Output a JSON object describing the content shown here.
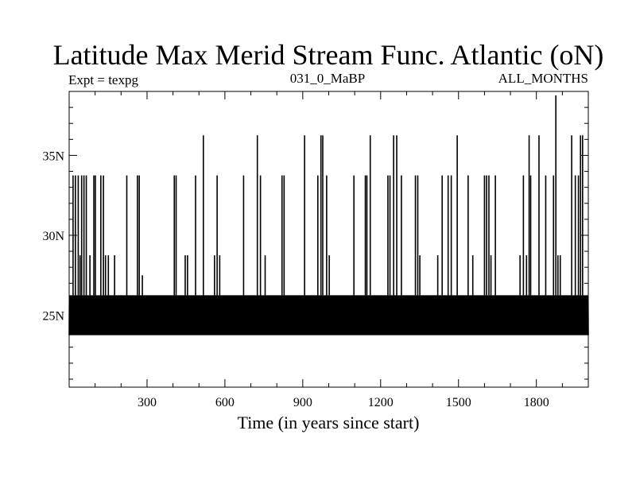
{
  "chart_data": {
    "type": "line",
    "title": "Latitude Max Merid Stream Func. Atlantic (oN)",
    "subtitle_left": "Expt = texpg",
    "subtitle_center": "031_0_MaBP",
    "subtitle_right": "ALL_MONTHS",
    "xlabel": "Time (in years since start)",
    "ylabel": "",
    "xlim": [
      0,
      2000
    ],
    "ylim": [
      20.5,
      39
    ],
    "x_ticks": [
      300,
      600,
      900,
      1200,
      1500,
      1800
    ],
    "x_tick_labels": [
      "300",
      "600",
      "900",
      "1200",
      "1500",
      "1800"
    ],
    "y_ticks": [
      25,
      30,
      35
    ],
    "y_tick_labels": [
      "25N",
      "30N",
      "35N"
    ],
    "grid": false,
    "series": [
      {
        "name": "Latitude of max meridional stream function",
        "color": "#000000",
        "baseline_low": 23.75,
        "baseline_high": 26.25,
        "spikes": [
          {
            "x": 15,
            "value": 33.75
          },
          {
            "x": 24,
            "value": 33.75
          },
          {
            "x": 35,
            "value": 33.75
          },
          {
            "x": 42,
            "value": 28.75
          },
          {
            "x": 48,
            "value": 33.75
          },
          {
            "x": 57,
            "value": 33.75
          },
          {
            "x": 66,
            "value": 33.75
          },
          {
            "x": 80,
            "value": 28.75
          },
          {
            "x": 95,
            "value": 33.75
          },
          {
            "x": 101,
            "value": 33.75
          },
          {
            "x": 122,
            "value": 33.75
          },
          {
            "x": 132,
            "value": 33.75
          },
          {
            "x": 140,
            "value": 28.75
          },
          {
            "x": 151,
            "value": 28.75
          },
          {
            "x": 175,
            "value": 28.75
          },
          {
            "x": 222,
            "value": 33.75
          },
          {
            "x": 263,
            "value": 33.75
          },
          {
            "x": 270,
            "value": 33.75
          },
          {
            "x": 282,
            "value": 27.5
          },
          {
            "x": 405,
            "value": 33.75
          },
          {
            "x": 412,
            "value": 33.75
          },
          {
            "x": 447,
            "value": 28.75
          },
          {
            "x": 456,
            "value": 28.75
          },
          {
            "x": 487,
            "value": 33.75
          },
          {
            "x": 517,
            "value": 36.25
          },
          {
            "x": 560,
            "value": 28.75
          },
          {
            "x": 570,
            "value": 33.75
          },
          {
            "x": 580,
            "value": 28.75
          },
          {
            "x": 672,
            "value": 33.75
          },
          {
            "x": 725,
            "value": 36.25
          },
          {
            "x": 737,
            "value": 33.75
          },
          {
            "x": 755,
            "value": 28.75
          },
          {
            "x": 820,
            "value": 33.75
          },
          {
            "x": 828,
            "value": 33.75
          },
          {
            "x": 907,
            "value": 36.25
          },
          {
            "x": 958,
            "value": 33.75
          },
          {
            "x": 970,
            "value": 36.25
          },
          {
            "x": 977,
            "value": 36.25
          },
          {
            "x": 992,
            "value": 33.75
          },
          {
            "x": 1002,
            "value": 28.75
          },
          {
            "x": 1097,
            "value": 33.75
          },
          {
            "x": 1141,
            "value": 33.75
          },
          {
            "x": 1147,
            "value": 33.75
          },
          {
            "x": 1160,
            "value": 36.25
          },
          {
            "x": 1228,
            "value": 33.75
          },
          {
            "x": 1236,
            "value": 33.75
          },
          {
            "x": 1250,
            "value": 36.25
          },
          {
            "x": 1262,
            "value": 36.25
          },
          {
            "x": 1280,
            "value": 33.75
          },
          {
            "x": 1334,
            "value": 33.75
          },
          {
            "x": 1343,
            "value": 33.75
          },
          {
            "x": 1351,
            "value": 28.75
          },
          {
            "x": 1420,
            "value": 28.75
          },
          {
            "x": 1437,
            "value": 33.75
          },
          {
            "x": 1460,
            "value": 33.75
          },
          {
            "x": 1472,
            "value": 33.75
          },
          {
            "x": 1495,
            "value": 36.25
          },
          {
            "x": 1537,
            "value": 33.75
          },
          {
            "x": 1555,
            "value": 28.75
          },
          {
            "x": 1600,
            "value": 33.75
          },
          {
            "x": 1608,
            "value": 33.75
          },
          {
            "x": 1617,
            "value": 33.75
          },
          {
            "x": 1625,
            "value": 28.75
          },
          {
            "x": 1642,
            "value": 33.75
          },
          {
            "x": 1737,
            "value": 28.75
          },
          {
            "x": 1750,
            "value": 33.75
          },
          {
            "x": 1762,
            "value": 28.75
          },
          {
            "x": 1772,
            "value": 36.25
          },
          {
            "x": 1778,
            "value": 33.75
          },
          {
            "x": 1810,
            "value": 36.25
          },
          {
            "x": 1836,
            "value": 33.75
          },
          {
            "x": 1866,
            "value": 33.75
          },
          {
            "x": 1875,
            "value": 38.75
          },
          {
            "x": 1883,
            "value": 28.75
          },
          {
            "x": 1892,
            "value": 28.75
          },
          {
            "x": 1936,
            "value": 36.25
          },
          {
            "x": 1950,
            "value": 33.75
          },
          {
            "x": 1962,
            "value": 33.75
          },
          {
            "x": 1970,
            "value": 36.25
          },
          {
            "x": 1978,
            "value": 36.25
          }
        ]
      }
    ]
  }
}
